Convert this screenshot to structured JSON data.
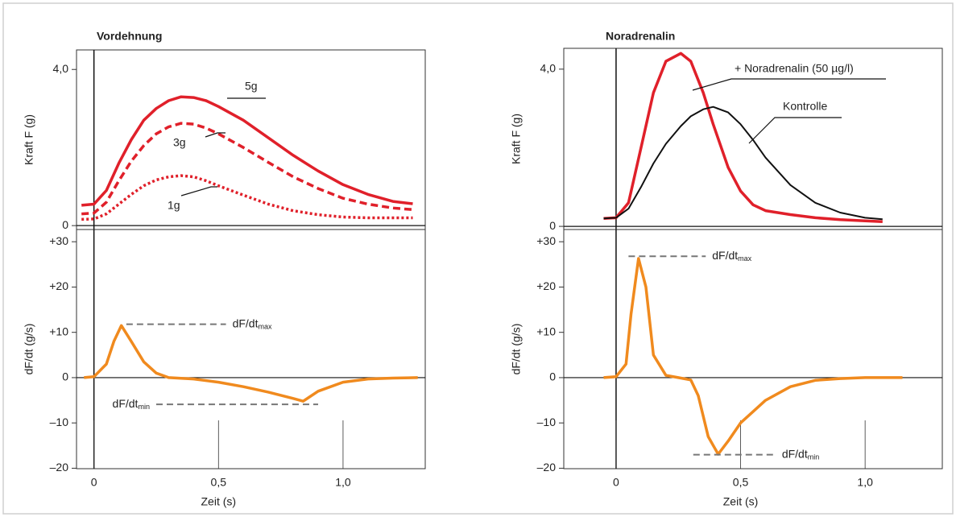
{
  "chart_data": [
    {
      "type": "line",
      "title": "Vordehnung",
      "ylabel": "Kraft F (g)",
      "x": [
        -0.05,
        0,
        0.05,
        0.1,
        0.15,
        0.2,
        0.25,
        0.3,
        0.35,
        0.4,
        0.45,
        0.5,
        0.6,
        0.7,
        0.8,
        0.9,
        1.0,
        1.1,
        1.2,
        1.28
      ],
      "xlim": [
        -0.07,
        1.33
      ],
      "ylim": [
        -0.1,
        4.5
      ],
      "yticks": [
        0,
        {
          "value": 4.0,
          "label": "4,0"
        }
      ],
      "series": [
        {
          "name": "5g",
          "color": "#e0202a",
          "dash": "solid",
          "values": [
            0.52,
            0.55,
            0.9,
            1.6,
            2.2,
            2.7,
            3.0,
            3.2,
            3.3,
            3.28,
            3.2,
            3.05,
            2.7,
            2.25,
            1.8,
            1.4,
            1.05,
            0.8,
            0.62,
            0.56
          ]
        },
        {
          "name": "3g",
          "color": "#e0202a",
          "dash": "dashed",
          "values": [
            0.3,
            0.32,
            0.6,
            1.15,
            1.65,
            2.05,
            2.35,
            2.53,
            2.62,
            2.6,
            2.5,
            2.35,
            2.0,
            1.62,
            1.25,
            0.95,
            0.7,
            0.55,
            0.45,
            0.41
          ]
        },
        {
          "name": "1g",
          "color": "#e0202a",
          "dash": "dotted",
          "values": [
            0.16,
            0.17,
            0.3,
            0.55,
            0.8,
            1.02,
            1.17,
            1.25,
            1.28,
            1.25,
            1.15,
            1.02,
            0.78,
            0.55,
            0.38,
            0.28,
            0.22,
            0.2,
            0.2,
            0.2
          ]
        }
      ]
    },
    {
      "type": "line",
      "title": "Noradrenalin",
      "ylabel": "Kraft F (g)",
      "x": [
        -0.05,
        0,
        0.05,
        0.1,
        0.15,
        0.2,
        0.26,
        0.3,
        0.35,
        0.39,
        0.45,
        0.5,
        0.55,
        0.6,
        0.7,
        0.8,
        0.9,
        1.0,
        1.07
      ],
      "xlim": [
        -0.21,
        1.31
      ],
      "ylim": [
        -0.08,
        4.53
      ],
      "yticks": [
        0,
        {
          "value": 4.0,
          "label": "4,0"
        }
      ],
      "series": [
        {
          "name": "+ Noradrenalin (50 µg/l)",
          "color": "#e0202a",
          "dash": "solid",
          "values": [
            0.2,
            0.22,
            0.6,
            2.0,
            3.4,
            4.2,
            4.4,
            4.2,
            3.4,
            2.6,
            1.5,
            0.9,
            0.55,
            0.4,
            0.3,
            0.22,
            0.17,
            0.14,
            0.12
          ]
        },
        {
          "name": "Kontrolle",
          "color": "#111111",
          "dash": "solid",
          "values": [
            0.2,
            0.22,
            0.45,
            1.0,
            1.6,
            2.1,
            2.55,
            2.8,
            2.98,
            3.04,
            2.9,
            2.6,
            2.2,
            1.75,
            1.05,
            0.6,
            0.35,
            0.22,
            0.18
          ]
        }
      ]
    },
    {
      "type": "line",
      "ylabel": "dF/dt (g/s)",
      "xlabel": "Zeit (s)",
      "x": [
        -0.04,
        0,
        0.05,
        0.08,
        0.11,
        0.15,
        0.2,
        0.25,
        0.3,
        0.4,
        0.5,
        0.6,
        0.7,
        0.8,
        0.84,
        0.9,
        1.0,
        1.1,
        1.2,
        1.3
      ],
      "xlim": [
        -0.07,
        1.33
      ],
      "ylim": [
        -20.1,
        32.7
      ],
      "xticks": [
        0,
        {
          "value": 0.5,
          "label": "0,5"
        },
        {
          "value": 1.0,
          "label": "1,0"
        }
      ],
      "yticks": [
        {
          "value": 30,
          "label": "+30"
        },
        {
          "value": 20,
          "label": "+20"
        },
        {
          "value": 10,
          "label": "+10"
        },
        0,
        {
          "value": -10,
          "label": "–10"
        },
        {
          "value": -20,
          "label": "–20"
        }
      ],
      "series": [
        {
          "color": "#f08a1e",
          "dash": "solid",
          "values": [
            0,
            0.2,
            3,
            8,
            11.5,
            8,
            3.5,
            1,
            0,
            -0.3,
            -1,
            -2,
            -3.2,
            -4.6,
            -5.2,
            -3,
            -1,
            -0.3,
            -0.1,
            0
          ]
        }
      ],
      "annotations": [
        {
          "label": "dF/dt",
          "subscript": "max",
          "y": 11.8,
          "x": [
            0.13,
            0.53
          ],
          "side": "right"
        },
        {
          "label": "dF/dt",
          "subscript": "min",
          "y": -5.9,
          "x": [
            0.25,
            0.9
          ],
          "side": "left"
        }
      ]
    },
    {
      "type": "line",
      "ylabel": "dF/dt (g/s)",
      "xlabel": "Zeit (s)",
      "x": [
        -0.05,
        0,
        0.04,
        0.06,
        0.09,
        0.12,
        0.15,
        0.2,
        0.25,
        0.3,
        0.33,
        0.37,
        0.41,
        0.45,
        0.5,
        0.6,
        0.7,
        0.8,
        0.9,
        1.0,
        1.15
      ],
      "xlim": [
        -0.21,
        1.31
      ],
      "ylim": [
        -20.1,
        32.7
      ],
      "xticks": [
        0,
        {
          "value": 0.5,
          "label": "0,5"
        },
        {
          "value": 1.0,
          "label": "1,0"
        }
      ],
      "yticks": [
        {
          "value": 30,
          "label": "+30"
        },
        {
          "value": 20,
          "label": "+20"
        },
        {
          "value": 10,
          "label": "+10"
        },
        0,
        {
          "value": -10,
          "label": "–10"
        },
        {
          "value": -20,
          "label": "–20"
        }
      ],
      "series": [
        {
          "color": "#f08a1e",
          "dash": "solid",
          "values": [
            0,
            0.2,
            3,
            14,
            26.3,
            20,
            5,
            0.5,
            0,
            -0.5,
            -4,
            -13,
            -16.9,
            -14,
            -10,
            -5,
            -2,
            -0.6,
            -0.2,
            0,
            0
          ]
        }
      ],
      "annotations": [
        {
          "label": "dF/dt",
          "subscript": "max",
          "y": 26.8,
          "x": [
            0.05,
            0.36
          ],
          "side": "right"
        },
        {
          "label": "dF/dt",
          "subscript": "min",
          "y": -17,
          "x": [
            0.31,
            0.64
          ],
          "side": "right"
        }
      ]
    }
  ]
}
